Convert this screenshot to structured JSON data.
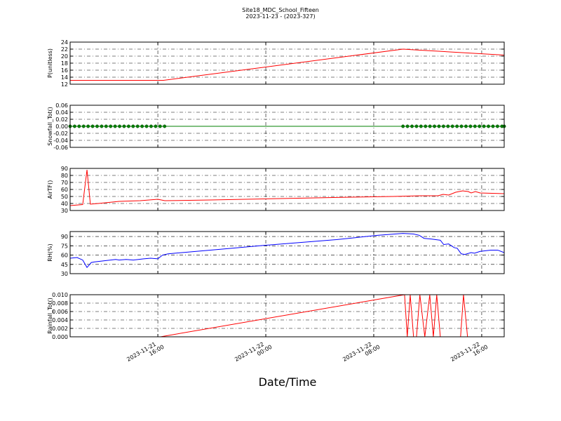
{
  "chart_data": [
    {
      "type": "line",
      "title": "Site18_MDC_School_Fifteen",
      "subtitle": "2023-11-23 - (2023-327)",
      "ylabel": "P(unitless)",
      "color": "#ff0000",
      "grid": true,
      "xlim": [
        "2023-11-21 09:30",
        "2023-11-22 17:40"
      ],
      "xticks": [
        "2023-11-21 16:00",
        "2023-11-22 00:00",
        "2023-11-22 08:00",
        "2023-11-22 16:00"
      ],
      "ylim": [
        12,
        24
      ],
      "yticks": [
        12,
        14,
        16,
        18,
        20,
        22,
        24
      ],
      "x": [
        "2023-11-21 09:30",
        "2023-11-21 16:25",
        "2023-11-22 10:10",
        "2023-11-22 11:00",
        "2023-11-22 17:40"
      ],
      "values": [
        13.1,
        13.1,
        22,
        21.8,
        20.3
      ]
    },
    {
      "type": "line",
      "ylabel": "Snowfall_Tot()",
      "color": "#008000",
      "markers": true,
      "grid": true,
      "xlim": [
        "2023-11-21 09:30",
        "2023-11-22 17:40"
      ],
      "xticks": [
        "2023-11-21 16:00",
        "2023-11-22 00:00",
        "2023-11-22 08:00",
        "2023-11-22 16:00"
      ],
      "ylim": [
        -0.06,
        0.06
      ],
      "yticks": [
        -0.06,
        -0.04,
        -0.02,
        {
          "value": 0,
          "label": "0.00"
        },
        0.02,
        0.04,
        0.06
      ],
      "x": [
        "2023-11-21 09:30",
        "2023-11-21 09:50",
        "2023-11-21 10:10",
        "2023-11-21 10:30",
        "2023-11-21 10:50",
        "2023-11-21 11:10",
        "2023-11-21 11:30",
        "2023-11-21 11:50",
        "2023-11-21 12:10",
        "2023-11-21 12:30",
        "2023-11-21 12:50",
        "2023-11-21 13:10",
        "2023-11-21 13:30",
        "2023-11-21 13:50",
        "2023-11-21 14:10",
        "2023-11-21 14:30",
        "2023-11-21 14:50",
        "2023-11-21 15:10",
        "2023-11-21 15:30",
        "2023-11-21 15:50",
        "2023-11-21 16:10",
        "2023-11-21 16:30",
        "2023-11-22 10:10",
        "2023-11-22 10:30",
        "2023-11-22 10:50",
        "2023-11-22 11:10",
        "2023-11-22 11:30",
        "2023-11-22 11:50",
        "2023-11-22 12:10",
        "2023-11-22 12:30",
        "2023-11-22 12:50",
        "2023-11-22 13:10",
        "2023-11-22 13:30",
        "2023-11-22 13:50",
        "2023-11-22 14:10",
        "2023-11-22 14:30",
        "2023-11-22 14:50",
        "2023-11-22 15:10",
        "2023-11-22 15:30",
        "2023-11-22 15:50",
        "2023-11-22 16:10",
        "2023-11-22 16:30",
        "2023-11-22 16:50",
        "2023-11-22 17:10",
        "2023-11-22 17:30",
        "2023-11-22 17:40"
      ],
      "values": [
        0,
        0,
        0,
        0,
        0,
        0,
        0,
        0,
        0,
        0,
        0,
        0,
        0,
        0,
        0,
        0,
        0,
        0,
        0,
        0,
        0,
        0,
        0,
        0,
        0,
        0,
        0,
        0,
        0,
        0,
        0,
        0,
        0,
        0,
        0,
        0,
        0,
        0,
        0,
        0,
        0,
        0,
        0,
        0,
        0,
        0
      ]
    },
    {
      "type": "line",
      "ylabel": "AirTF()",
      "color": "#ff0000",
      "grid": true,
      "xlim": [
        "2023-11-21 09:30",
        "2023-11-22 17:40"
      ],
      "xticks": [
        "2023-11-21 16:00",
        "2023-11-22 00:00",
        "2023-11-22 08:00",
        "2023-11-22 16:00"
      ],
      "ylim": [
        30,
        90
      ],
      "yticks": [
        30,
        40,
        50,
        60,
        70,
        80,
        90
      ],
      "x": [
        "2023-11-21 09:30",
        "2023-11-21 10:26",
        "2023-11-21 10:45",
        "2023-11-21 11:00",
        "2023-11-21 11:35",
        "2023-11-21 13:08",
        "2023-11-21 14:42",
        "2023-11-21 16:00",
        "2023-11-21 16:31",
        "2023-11-21 19:53",
        "2023-11-22 01:05",
        "2023-11-22 06:17",
        "2023-11-22 09:24",
        "2023-11-22 11:28",
        "2023-11-22 12:46",
        "2023-11-22 13:08",
        "2023-11-22 13:33",
        "2023-11-22 14:04",
        "2023-11-22 14:35",
        "2023-11-22 15:00",
        "2023-11-22 15:13",
        "2023-11-22 15:32",
        "2023-11-22 15:53",
        "2023-11-22 17:40"
      ],
      "values": [
        37,
        38.5,
        88,
        39,
        40,
        43,
        44,
        46,
        44,
        45,
        47,
        49,
        50,
        51,
        51,
        53,
        52,
        56,
        58,
        57,
        55,
        57,
        55,
        54
      ]
    },
    {
      "type": "line",
      "ylabel": "RH(%)",
      "color": "#0000ff",
      "grid": true,
      "xlim": [
        "2023-11-21 09:30",
        "2023-11-22 17:40"
      ],
      "xticks": [
        "2023-11-21 16:00",
        "2023-11-22 00:00",
        "2023-11-22 08:00",
        "2023-11-22 16:00"
      ],
      "ylim": [
        30,
        98
      ],
      "yticks": [
        30,
        45,
        60,
        75,
        90
      ],
      "x": [
        "2023-11-21 09:30",
        "2023-11-21 10:01",
        "2023-11-21 10:26",
        "2023-11-21 10:45",
        "2023-11-21 11:04",
        "2023-11-21 11:19",
        "2023-11-21 12:06",
        "2023-11-21 12:53",
        "2023-11-21 13:08",
        "2023-11-21 13:39",
        "2023-11-21 14:11",
        "2023-11-21 14:57",
        "2023-11-21 15:28",
        "2023-11-21 16:00",
        "2023-11-21 16:21",
        "2023-11-21 16:46",
        "2023-11-21 20:56",
        "2023-11-22 00:03",
        "2023-11-22 05:14",
        "2023-11-22 08:21",
        "2023-11-22 10:10",
        "2023-11-22 10:57",
        "2023-11-22 11:22",
        "2023-11-22 11:44",
        "2023-11-22 12:15",
        "2023-11-22 12:56",
        "2023-11-22 13:11",
        "2023-11-22 13:33",
        "2023-11-22 13:58",
        "2023-11-22 14:11",
        "2023-11-22 14:29",
        "2023-11-22 14:45",
        "2023-11-22 15:13",
        "2023-11-22 15:28",
        "2023-11-22 15:53",
        "2023-11-22 16:40",
        "2023-11-22 17:11",
        "2023-11-22 17:40"
      ],
      "values": [
        55,
        56,
        52,
        40,
        48,
        49,
        51,
        53,
        52,
        53,
        52,
        54,
        55,
        54,
        60,
        62,
        70,
        76,
        85,
        92,
        95,
        94,
        92,
        87,
        86,
        84,
        77,
        78,
        72,
        71,
        62,
        61,
        64,
        63,
        66,
        68,
        68,
        64
      ]
    },
    {
      "type": "line",
      "ylabel": "Rainfall_Tot()",
      "xlabel": "Date/Time",
      "color": "#ff0000",
      "grid": true,
      "xlim": [
        "2023-11-21 09:30",
        "2023-11-22 17:40"
      ],
      "xticks": [
        {
          "value": "2023-11-21 16:00",
          "label": [
            "2023-11-21",
            "16:00"
          ]
        },
        {
          "value": "2023-11-22 00:00",
          "label": [
            "2023-11-22",
            "00:00"
          ]
        },
        {
          "value": "2023-11-22 08:00",
          "label": [
            "2023-11-22",
            "08:00"
          ]
        },
        {
          "value": "2023-11-22 16:00",
          "label": [
            "2023-11-22",
            "16:00"
          ]
        }
      ],
      "ylim": [
        0,
        0.01
      ],
      "yticks": [
        {
          "value": 0,
          "label": "0.000"
        },
        {
          "value": 0.002,
          "label": "0.002"
        },
        {
          "value": 0.004,
          "label": "0.004"
        },
        {
          "value": 0.006,
          "label": "0.006"
        },
        {
          "value": 0.008,
          "label": "0.008"
        },
        {
          "value": 0.01,
          "label": "0.010"
        }
      ],
      "x": [
        "2023-11-21 09:30",
        "2023-11-21 16:12",
        "2023-11-22 10:17",
        "2023-11-22 10:29",
        "2023-11-22 10:42",
        "2023-11-22 10:57",
        "2023-11-22 11:10",
        "2023-11-22 11:25",
        "2023-11-22 11:47",
        "2023-11-22 12:09",
        "2023-11-22 12:25",
        "2023-11-22 12:40",
        "2023-11-22 12:56",
        "2023-11-22 14:26",
        "2023-11-22 14:39",
        "2023-11-22 14:57",
        "2023-11-22 17:40"
      ],
      "values": [
        0,
        0,
        0.01,
        0,
        0.01,
        0,
        0,
        0.01,
        0,
        0.01,
        0,
        0.01,
        0,
        0,
        0.01,
        0,
        0
      ]
    }
  ]
}
